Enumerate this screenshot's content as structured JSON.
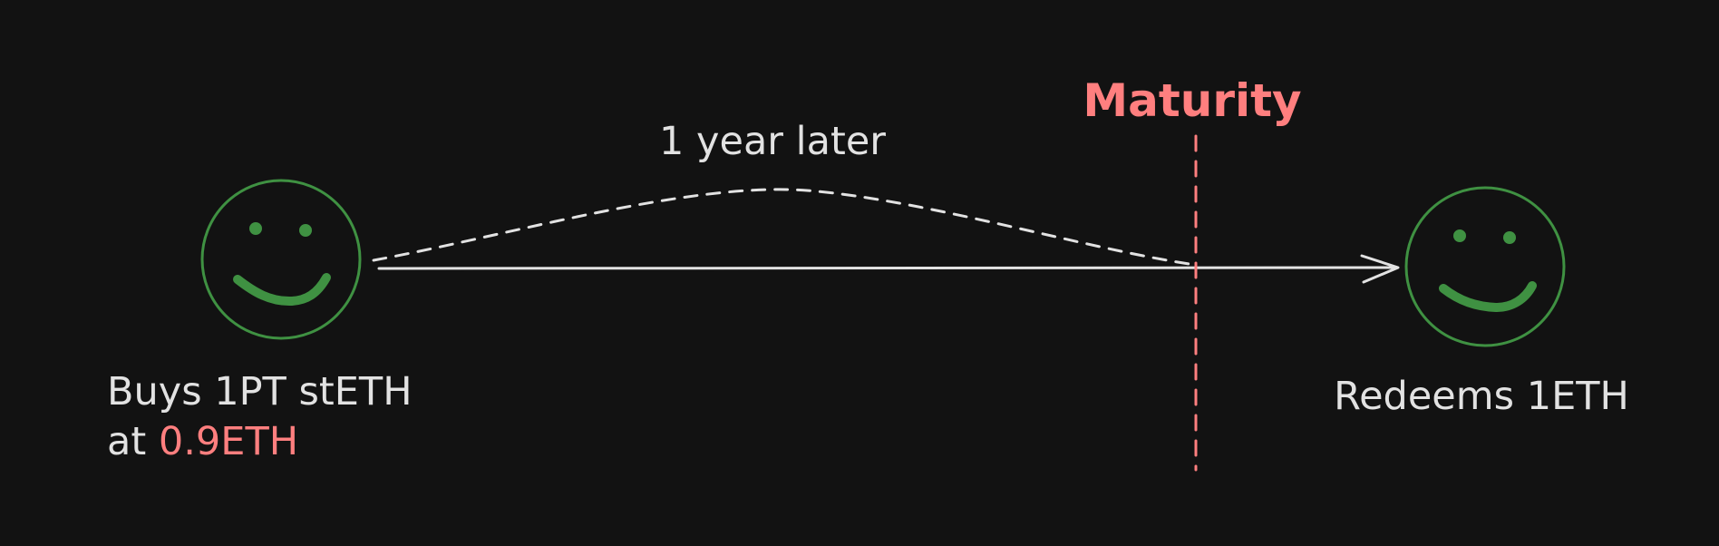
{
  "diagram": {
    "duration_label": "1 year later",
    "maturity_label": "Maturity",
    "buyer": {
      "line1": "Buys 1PT stETH",
      "line2_prefix": "at ",
      "price": "0.9ETH"
    },
    "redeemer": {
      "label": "Redeems 1ETH"
    }
  },
  "colors": {
    "background": "#121212",
    "text": "#e2e2e2",
    "accent": "#ff7f7f",
    "smiley": "#3f9142"
  },
  "icons": {
    "start": "smiley-face-icon",
    "end": "smiley-face-icon"
  }
}
